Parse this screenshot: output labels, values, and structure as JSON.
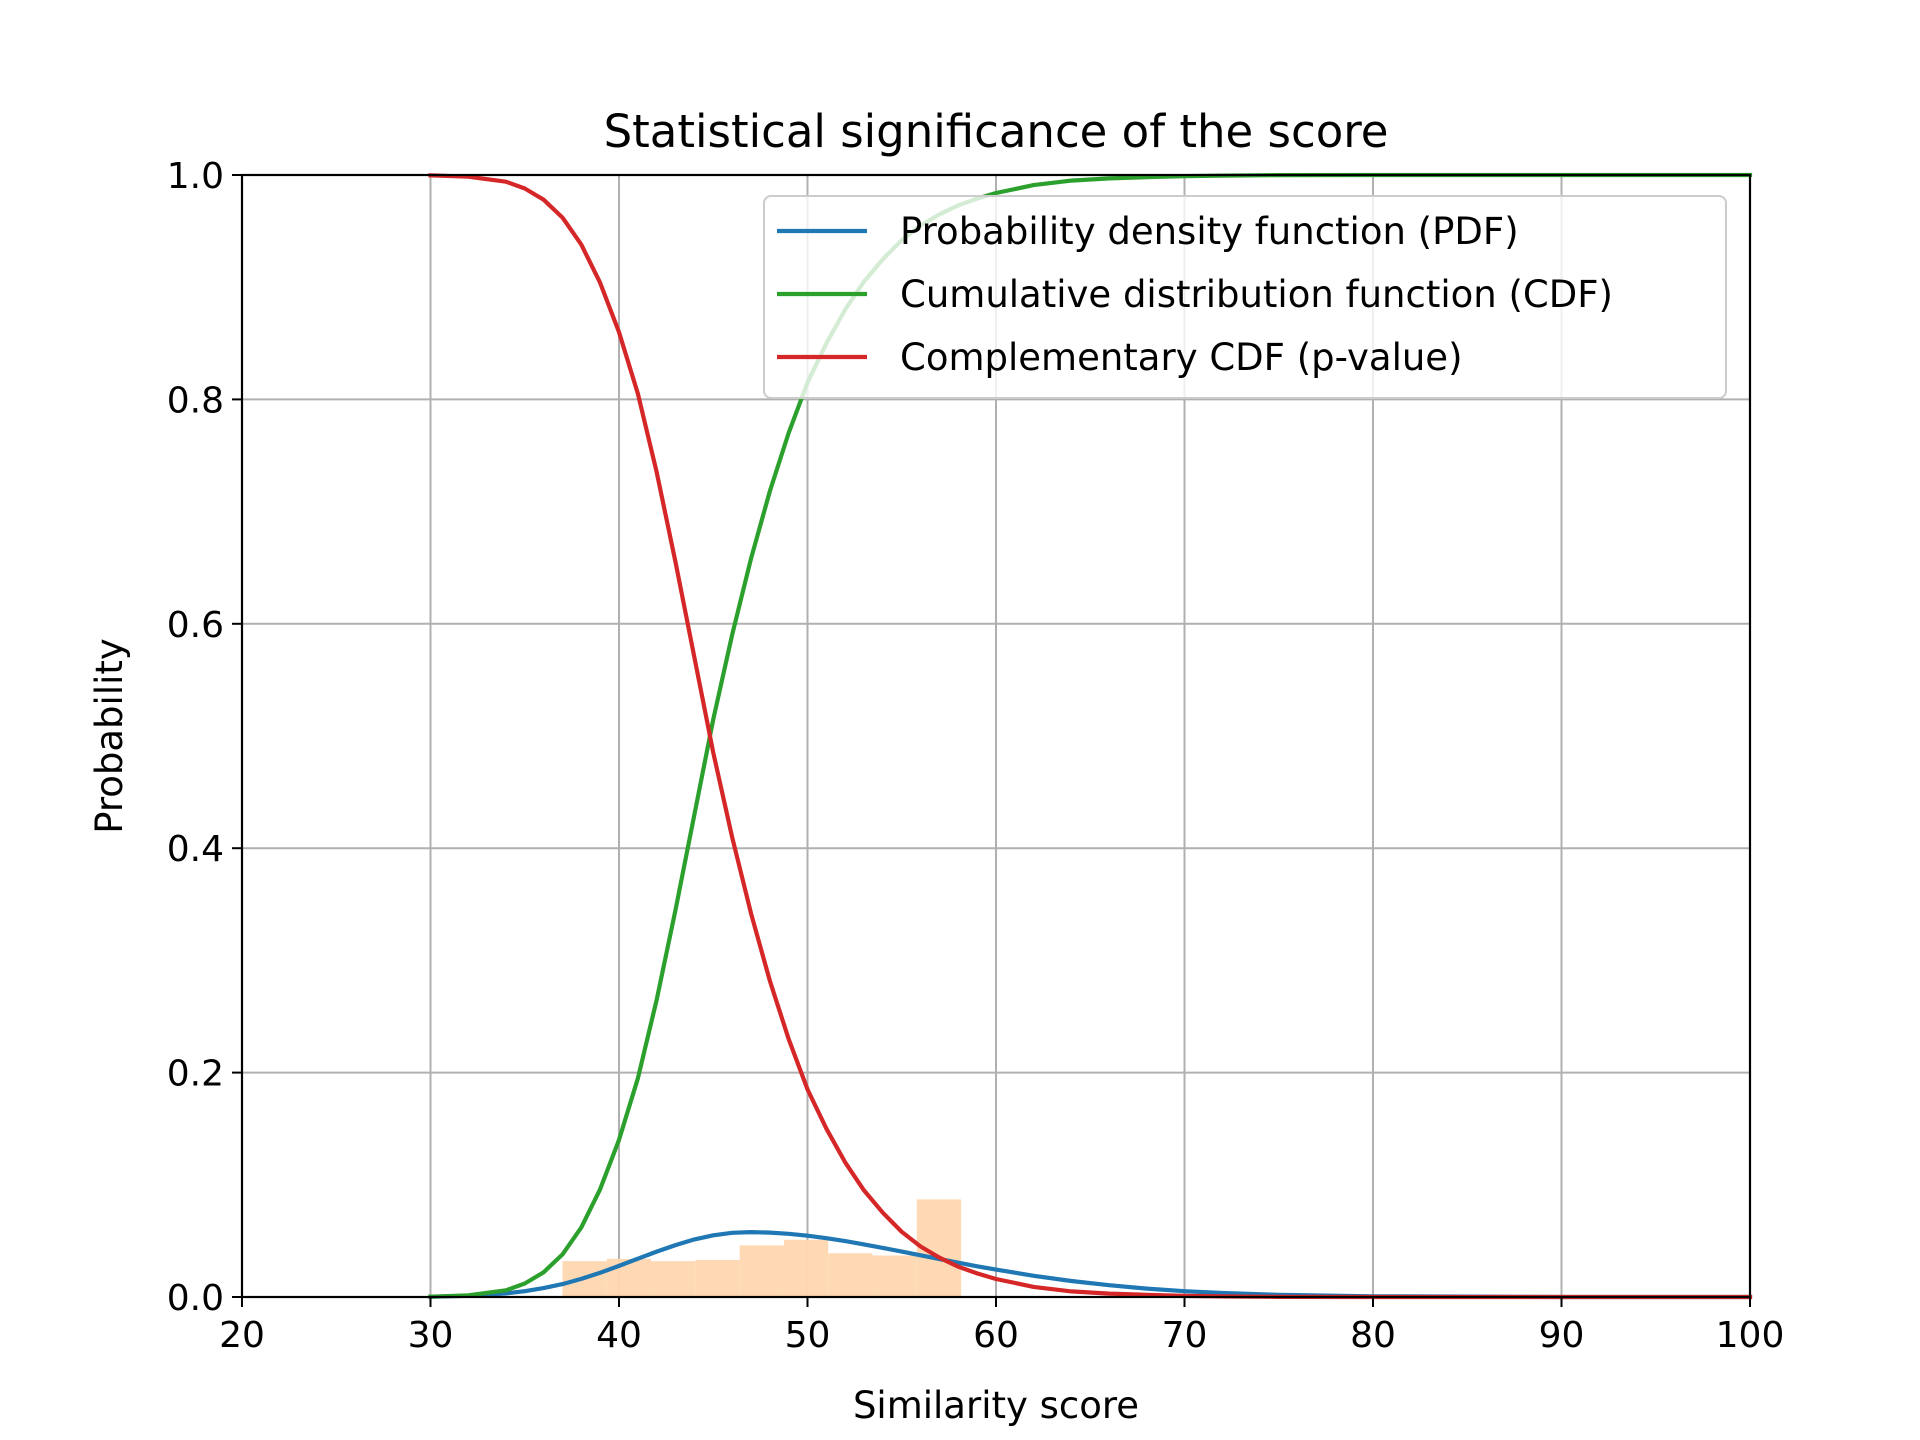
{
  "chart_data": {
    "type": "line",
    "title": "Statistical significance of the score",
    "xlabel": "Similarity score",
    "ylabel": "Probability",
    "xlim": [
      20,
      100
    ],
    "ylim": [
      0,
      1.0
    ],
    "xticks": [
      20,
      30,
      40,
      50,
      60,
      70,
      80,
      90,
      100
    ],
    "yticks": [
      0.0,
      0.2,
      0.4,
      0.6,
      0.8,
      1.0
    ],
    "xtick_labels": [
      "20",
      "30",
      "40",
      "50",
      "60",
      "70",
      "80",
      "90",
      "100"
    ],
    "ytick_labels": [
      "0.0",
      "0.2",
      "0.4",
      "0.6",
      "0.8",
      "1.0"
    ],
    "grid": true,
    "legend_position": "top-right",
    "x": [
      30,
      32,
      34,
      35,
      36,
      37,
      38,
      39,
      40,
      41,
      42,
      43,
      44,
      45,
      46,
      47,
      48,
      49,
      50,
      51,
      52,
      53,
      54,
      55,
      56,
      57,
      58,
      59,
      60,
      62,
      64,
      66,
      68,
      70,
      72,
      75,
      80,
      90,
      100
    ],
    "series": [
      {
        "name": "Probability density function (PDF)",
        "color": "#1f77b4",
        "values": [
          0.0003,
          0.0011,
          0.0032,
          0.0052,
          0.0079,
          0.0115,
          0.0161,
          0.0216,
          0.0277,
          0.0341,
          0.0405,
          0.0463,
          0.0513,
          0.055,
          0.0572,
          0.0578,
          0.0574,
          0.0563,
          0.0546,
          0.0524,
          0.0498,
          0.0469,
          0.0438,
          0.0405,
          0.0372,
          0.0338,
          0.0306,
          0.0274,
          0.0244,
          0.0189,
          0.0143,
          0.0105,
          0.0075,
          0.0052,
          0.0036,
          0.0019,
          0.0006,
          0.0,
          0.0
        ]
      },
      {
        "name": "Cumulative distribution function (CDF)",
        "color": "#2ca02c",
        "values": [
          0.0003,
          0.0015,
          0.006,
          0.012,
          0.022,
          0.038,
          0.062,
          0.096,
          0.14,
          0.195,
          0.265,
          0.345,
          0.43,
          0.515,
          0.59,
          0.658,
          0.718,
          0.77,
          0.815,
          0.85,
          0.88,
          0.905,
          0.925,
          0.942,
          0.955,
          0.965,
          0.973,
          0.979,
          0.984,
          0.991,
          0.995,
          0.997,
          0.998,
          0.999,
          0.9995,
          0.9999,
          1.0,
          1.0,
          1.0
        ]
      },
      {
        "name": "Complementary CDF (p-value)",
        "color": "#d62728",
        "values": [
          0.9997,
          0.9985,
          0.994,
          0.988,
          0.978,
          0.962,
          0.938,
          0.904,
          0.86,
          0.805,
          0.735,
          0.655,
          0.57,
          0.485,
          0.41,
          0.342,
          0.282,
          0.23,
          0.185,
          0.15,
          0.12,
          0.095,
          0.075,
          0.058,
          0.045,
          0.035,
          0.027,
          0.021,
          0.016,
          0.009,
          0.005,
          0.003,
          0.002,
          0.001,
          0.0005,
          0.0001,
          0.0,
          0.0,
          0.0
        ]
      }
    ],
    "histogram": {
      "color": "#ffd6b0",
      "bin_edges": [
        37,
        39.35,
        41.7,
        44.05,
        46.4,
        48.75,
        51.1,
        53.45,
        55.8,
        58.15,
        60.5
      ],
      "values": [
        0.032,
        0.034,
        0.032,
        0.033,
        0.046,
        0.051,
        0.039,
        0.037,
        0.087,
        0.0
      ]
    }
  }
}
